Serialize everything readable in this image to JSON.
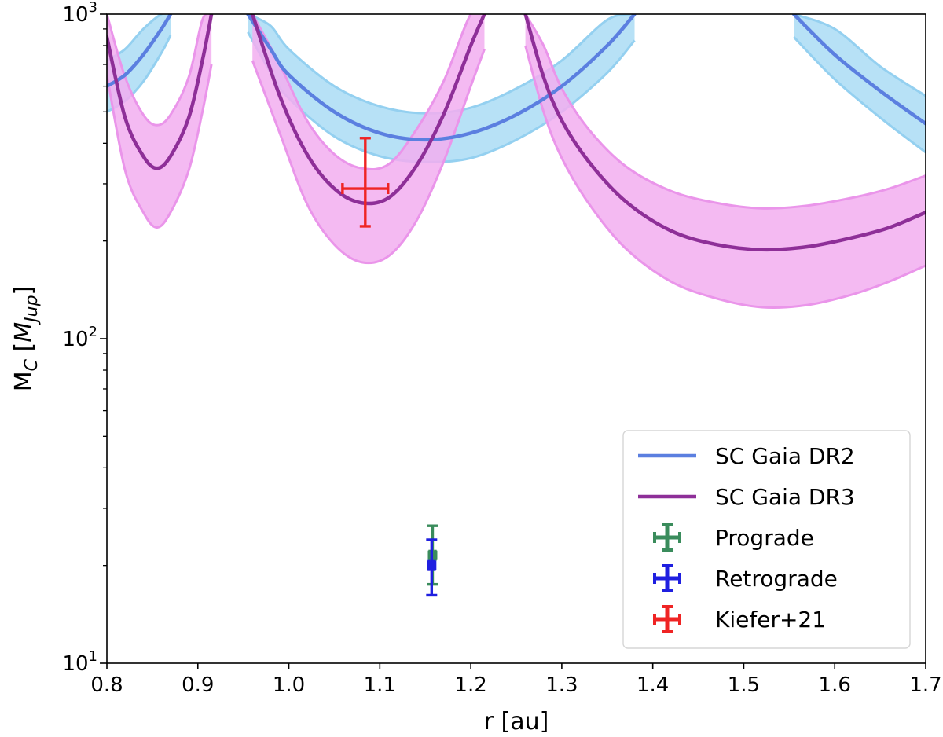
{
  "chart_data": {
    "type": "line",
    "xlabel": "r [au]",
    "ylabel_main": "M",
    "ylabel_sub": "C",
    "ylabel_unit_open": " [",
    "ylabel_unit_main": "M",
    "ylabel_unit_sub": "Jup",
    "ylabel_unit_close": "]",
    "xlim": [
      0.8,
      1.7
    ],
    "ylim": [
      10,
      1000
    ],
    "y_scale": "log",
    "grid": false,
    "legend_position": "bottom-right",
    "x_ticks": [
      "0.8",
      "0.9",
      "1.0",
      "1.1",
      "1.2",
      "1.3",
      "1.4",
      "1.5",
      "1.6",
      "1.7"
    ],
    "y_ticks": [
      {
        "base": "10",
        "exp": "1",
        "value": 10
      },
      {
        "base": "10",
        "exp": "2",
        "value": 100
      },
      {
        "base": "10",
        "exp": "3",
        "value": 1000
      }
    ],
    "series": [
      {
        "name": "SC Gaia DR2",
        "kind": "line",
        "color": "#5b7fe0",
        "band_color": "#aadcf5",
        "band_edge_color": "#94d0f0",
        "segments": [
          {
            "x": [
              0.8,
              0.82,
              0.84,
              0.86,
              0.87
            ],
            "center": [
              600,
              650,
              750,
              900,
              1000
            ],
            "lower": [
              500,
              540,
              620,
              760,
              860
            ],
            "upper": [
              720,
              780,
              900,
              1000,
              1000
            ]
          },
          {
            "x": [
              0.955,
              0.98,
              1.0,
              1.05,
              1.1,
              1.15,
              1.2,
              1.25,
              1.3,
              1.35,
              1.38
            ],
            "center": [
              1000,
              780,
              650,
              500,
              430,
              410,
              430,
              490,
              600,
              800,
              1000
            ],
            "lower": [
              880,
              660,
              550,
              420,
              365,
              350,
              360,
              410,
              500,
              660,
              830
            ],
            "upper": [
              1000,
              920,
              780,
              600,
              520,
              495,
              515,
              590,
              720,
              960,
              1000
            ]
          },
          {
            "x": [
              1.555,
              1.6,
              1.65,
              1.7
            ],
            "center": [
              1000,
              750,
              580,
              460
            ],
            "lower": [
              850,
              630,
              480,
              375
            ],
            "upper": [
              1000,
              900,
              690,
              560
            ]
          }
        ]
      },
      {
        "name": "SC Gaia DR3",
        "kind": "line",
        "color": "#8e2f98",
        "band_color": "#f2aef0",
        "band_edge_color": "#ea95ea",
        "segments": [
          {
            "x": [
              0.8,
              0.82,
              0.84,
              0.855,
              0.87,
              0.89,
              0.905,
              0.915
            ],
            "center": [
              850,
              480,
              365,
              335,
              365,
              480,
              720,
              1000
            ],
            "lower": [
              650,
              330,
              245,
              220,
              245,
              330,
              500,
              700
            ],
            "upper": [
              1000,
              640,
              490,
              455,
              490,
              640,
              960,
              1000
            ]
          },
          {
            "x": [
              0.96,
              0.99,
              1.02,
              1.05,
              1.08,
              1.11,
              1.14,
              1.17,
              1.2,
              1.215
            ],
            "center": [
              1000,
              560,
              370,
              290,
              262,
              272,
              340,
              490,
              800,
              1000
            ],
            "lower": [
              720,
              430,
              260,
              195,
              172,
              180,
              230,
              350,
              600,
              780
            ],
            "upper": [
              1000,
              700,
              470,
              370,
              335,
              345,
              440,
              620,
              1000,
              1000
            ]
          },
          {
            "x": [
              1.26,
              1.28,
              1.3,
              1.33,
              1.37,
              1.42,
              1.47,
              1.52,
              1.57,
              1.62,
              1.66,
              1.7
            ],
            "center": [
              1000,
              640,
              470,
              350,
              265,
              215,
              195,
              188,
              192,
              205,
              220,
              245
            ],
            "lower": [
              800,
              500,
              360,
              260,
              190,
              150,
              133,
              125,
              127,
              137,
              150,
              168
            ],
            "upper": [
              1000,
              800,
              590,
              440,
              340,
              285,
              262,
              252,
              257,
              272,
              290,
              318
            ]
          }
        ]
      },
      {
        "name": "Prograde",
        "kind": "errorbar",
        "color": "#3a8c5c",
        "x": 1.158,
        "y": 21.5,
        "x_err": 0.003,
        "y_low": 17.5,
        "y_high": 26.5
      },
      {
        "name": "Retrograde",
        "kind": "errorbar",
        "color": "#1f1fe0",
        "x": 1.157,
        "y": 20,
        "x_err": 0.003,
        "y_low": 16.2,
        "y_high": 24
      },
      {
        "name": "Kiefer+21",
        "kind": "errorbar",
        "color": "#ef2424",
        "x": 1.084,
        "y": 290,
        "x_err": 0.025,
        "y_low": 222,
        "y_high": 415
      }
    ]
  }
}
